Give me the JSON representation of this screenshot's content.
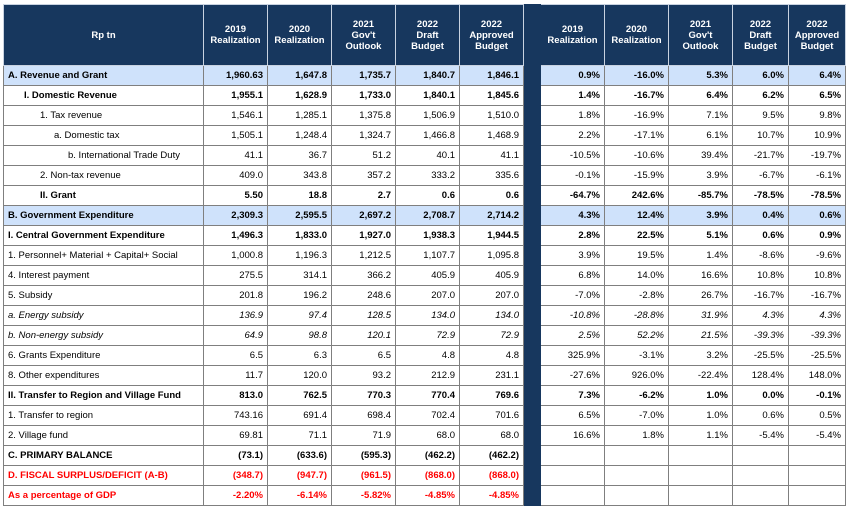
{
  "header": {
    "label": "Rp tn",
    "columns": [
      [
        "2019",
        "Realization"
      ],
      [
        "2020",
        "Realization"
      ],
      [
        "2021",
        "Gov't",
        "Outlook"
      ],
      [
        "2022",
        "Draft",
        "Budget"
      ],
      [
        "2022",
        "Approved",
        "Budget"
      ]
    ]
  },
  "rows": [
    {
      "label": "A. Revenue and Grant",
      "values": [
        "1,960.63",
        "1,647.8",
        "1,735.7",
        "1,840.7",
        "1,846.1"
      ],
      "growth": [
        "0.9%",
        "-16.0%",
        "5.3%",
        "6.0%",
        "6.4%"
      ]
    },
    {
      "label": "I. Domestic Revenue",
      "values": [
        "1,955.1",
        "1,628.9",
        "1,733.0",
        "1,840.1",
        "1,845.6"
      ],
      "growth": [
        "1.4%",
        "-16.7%",
        "6.4%",
        "6.2%",
        "6.5%"
      ]
    },
    {
      "label": "1. Tax revenue",
      "values": [
        "1,546.1",
        "1,285.1",
        "1,375.8",
        "1,506.9",
        "1,510.0"
      ],
      "growth": [
        "1.8%",
        "-16.9%",
        "7.1%",
        "9.5%",
        "9.8%"
      ]
    },
    {
      "label": "a. Domestic tax",
      "values": [
        "1,505.1",
        "1,248.4",
        "1,324.7",
        "1,466.8",
        "1,468.9"
      ],
      "growth": [
        "2.2%",
        "-17.1%",
        "6.1%",
        "10.7%",
        "10.9%"
      ]
    },
    {
      "label": "b. International Trade Duty",
      "values": [
        "41.1",
        "36.7",
        "51.2",
        "40.1",
        "41.1"
      ],
      "growth": [
        "-10.5%",
        "-10.6%",
        "39.4%",
        "-21.7%",
        "-19.7%"
      ]
    },
    {
      "label": "2. Non-tax revenue",
      "values": [
        "409.0",
        "343.8",
        "357.2",
        "333.2",
        "335.6"
      ],
      "growth": [
        "-0.1%",
        "-15.9%",
        "3.9%",
        "-6.7%",
        "-6.1%"
      ]
    },
    {
      "label": "II. Grant",
      "values": [
        "5.50",
        "18.8",
        "2.7",
        "0.6",
        "0.6"
      ],
      "growth": [
        "-64.7%",
        "242.6%",
        "-85.7%",
        "-78.5%",
        "-78.5%"
      ]
    },
    {
      "label": "B. Government Expenditure",
      "values": [
        "2,309.3",
        "2,595.5",
        "2,697.2",
        "2,708.7",
        "2,714.2"
      ],
      "growth": [
        "4.3%",
        "12.4%",
        "3.9%",
        "0.4%",
        "0.6%"
      ]
    },
    {
      "label": "I. Central Government Expenditure",
      "values": [
        "1,496.3",
        "1,833.0",
        "1,927.0",
        "1,938.3",
        "1,944.5"
      ],
      "growth": [
        "2.8%",
        "22.5%",
        "5.1%",
        "0.6%",
        "0.9%"
      ]
    },
    {
      "label": "1. Personnel+ Material + Capital+ Social",
      "values": [
        "1,000.8",
        "1,196.3",
        "1,212.5",
        "1,107.7",
        "1,095.8"
      ],
      "growth": [
        "3.9%",
        "19.5%",
        "1.4%",
        "-8.6%",
        "-9.6%"
      ]
    },
    {
      "label": "4. Interest payment",
      "values": [
        "275.5",
        "314.1",
        "366.2",
        "405.9",
        "405.9"
      ],
      "growth": [
        "6.8%",
        "14.0%",
        "16.6%",
        "10.8%",
        "10.8%"
      ]
    },
    {
      "label": "5. Subsidy",
      "values": [
        "201.8",
        "196.2",
        "248.6",
        "207.0",
        "207.0"
      ],
      "growth": [
        "-7.0%",
        "-2.8%",
        "26.7%",
        "-16.7%",
        "-16.7%"
      ]
    },
    {
      "label": "a. Energy subsidy",
      "values": [
        "136.9",
        "97.4",
        "128.5",
        "134.0",
        "134.0"
      ],
      "growth": [
        "-10.8%",
        "-28.8%",
        "31.9%",
        "4.3%",
        "4.3%"
      ]
    },
    {
      "label": "b. Non-energy subsidy",
      "values": [
        "64.9",
        "98.8",
        "120.1",
        "72.9",
        "72.9"
      ],
      "growth": [
        "2.5%",
        "52.2%",
        "21.5%",
        "-39.3%",
        "-39.3%"
      ]
    },
    {
      "label": "6. Grants Expenditure",
      "values": [
        "6.5",
        "6.3",
        "6.5",
        "4.8",
        "4.8"
      ],
      "growth": [
        "325.9%",
        "-3.1%",
        "3.2%",
        "-25.5%",
        "-25.5%"
      ]
    },
    {
      "label": "8. Other expenditures",
      "values": [
        "11.7",
        "120.0",
        "93.2",
        "212.9",
        "231.1"
      ],
      "growth": [
        "-27.6%",
        "926.0%",
        "-22.4%",
        "128.4%",
        "148.0%"
      ]
    },
    {
      "label": "II. Transfer to Region and Village Fund",
      "values": [
        "813.0",
        "762.5",
        "770.3",
        "770.4",
        "769.6"
      ],
      "growth": [
        "7.3%",
        "-6.2%",
        "1.0%",
        "0.0%",
        "-0.1%"
      ]
    },
    {
      "label": "1. Transfer to region",
      "values": [
        "743.16",
        "691.4",
        "698.4",
        "702.4",
        "701.6"
      ],
      "growth": [
        "6.5%",
        "-7.0%",
        "1.0%",
        "0.6%",
        "0.5%"
      ]
    },
    {
      "label": "2. Village fund",
      "values": [
        "69.81",
        "71.1",
        "71.9",
        "68.0",
        "68.0"
      ],
      "growth": [
        "16.6%",
        "1.8%",
        "1.1%",
        "-5.4%",
        "-5.4%"
      ]
    },
    {
      "label": "C. PRIMARY BALANCE",
      "values": [
        "(73.1)",
        "(633.6)",
        "(595.3)",
        "(462.2)",
        "(462.2)"
      ],
      "growth": [
        "",
        "",
        "",
        "",
        ""
      ]
    },
    {
      "label": "D. FISCAL SURPLUS/DEFICIT (A-B)",
      "values": [
        "(348.7)",
        "(947.7)",
        "(961.5)",
        "(868.0)",
        "(868.0)"
      ],
      "growth": [
        "",
        "",
        "",
        "",
        ""
      ]
    },
    {
      "label": "As a percentage of GDP",
      "values": [
        "-2.20%",
        "-6.14%",
        "-5.82%",
        "-4.85%",
        "-4.85%"
      ],
      "growth": [
        "",
        "",
        "",
        "",
        ""
      ]
    }
  ],
  "styles": {
    "header_bg": "#17375e",
    "highlight_bg": "#cfe2fb",
    "red_text": "#ff0000"
  }
}
